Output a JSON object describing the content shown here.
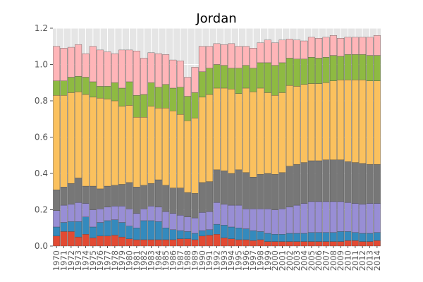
{
  "chart_data": {
    "type": "bar",
    "stacked": true,
    "title": "Jordan",
    "xlabel": "",
    "ylabel": "",
    "ylim": [
      0,
      1.2
    ],
    "yticks": [
      0.0,
      0.2,
      0.4,
      0.6,
      0.8,
      1.0,
      1.2
    ],
    "ytick_labels": [
      "0.0",
      "0.2",
      "0.4",
      "0.6",
      "0.8",
      "1.0",
      "1.2"
    ],
    "grid": true,
    "legend": "none",
    "categories": [
      "1970",
      "1971",
      "1972",
      "1973",
      "1974",
      "1975",
      "1976",
      "1977",
      "1978",
      "1979",
      "1980",
      "1981",
      "1982",
      "1983",
      "1984",
      "1985",
      "1986",
      "1987",
      "1988",
      "1989",
      "1990",
      "1991",
      "1992",
      "1993",
      "1994",
      "1995",
      "1996",
      "1997",
      "1998",
      "1999",
      "2000",
      "2001",
      "2002",
      "2003",
      "2004",
      "2005",
      "2006",
      "2007",
      "2008",
      "2009",
      "2010",
      "2011",
      "2012",
      "2013",
      "2014"
    ],
    "series": [
      {
        "color": "#E24A33",
        "values": [
          0.055,
          0.08,
          0.08,
          0.05,
          0.065,
          0.045,
          0.055,
          0.055,
          0.06,
          0.05,
          0.04,
          0.035,
          0.035,
          0.035,
          0.035,
          0.035,
          0.035,
          0.04,
          0.04,
          0.035,
          0.055,
          0.06,
          0.065,
          0.045,
          0.04,
          0.035,
          0.035,
          0.03,
          0.035,
          0.025,
          0.025,
          0.025,
          0.025,
          0.025,
          0.025,
          0.025,
          0.025,
          0.025,
          0.025,
          0.025,
          0.03,
          0.03,
          0.025,
          0.025,
          0.03
        ]
      },
      {
        "color": "#348ABD",
        "values": [
          0.05,
          0.05,
          0.055,
          0.085,
          0.095,
          0.06,
          0.075,
          0.085,
          0.085,
          0.08,
          0.07,
          0.065,
          0.105,
          0.105,
          0.1,
          0.065,
          0.055,
          0.045,
          0.04,
          0.035,
          0.03,
          0.03,
          0.055,
          0.07,
          0.065,
          0.065,
          0.06,
          0.055,
          0.045,
          0.045,
          0.04,
          0.04,
          0.045,
          0.045,
          0.045,
          0.05,
          0.05,
          0.05,
          0.05,
          0.055,
          0.05,
          0.045,
          0.045,
          0.045,
          0.045
        ]
      },
      {
        "color": "#988ED5",
        "values": [
          0.09,
          0.095,
          0.095,
          0.105,
          0.075,
          0.095,
          0.075,
          0.075,
          0.075,
          0.09,
          0.095,
          0.08,
          0.065,
          0.08,
          0.08,
          0.09,
          0.09,
          0.085,
          0.08,
          0.085,
          0.1,
          0.1,
          0.12,
          0.115,
          0.12,
          0.125,
          0.11,
          0.12,
          0.125,
          0.135,
          0.135,
          0.14,
          0.145,
          0.155,
          0.165,
          0.17,
          0.17,
          0.17,
          0.17,
          0.165,
          0.16,
          0.16,
          0.16,
          0.165,
          0.16
        ]
      },
      {
        "color": "#777777",
        "values": [
          0.115,
          0.1,
          0.115,
          0.135,
          0.095,
          0.13,
          0.11,
          0.115,
          0.115,
          0.12,
          0.145,
          0.145,
          0.13,
          0.125,
          0.15,
          0.145,
          0.14,
          0.15,
          0.135,
          0.135,
          0.165,
          0.165,
          0.18,
          0.185,
          0.175,
          0.195,
          0.2,
          0.175,
          0.19,
          0.195,
          0.195,
          0.2,
          0.225,
          0.225,
          0.225,
          0.225,
          0.225,
          0.23,
          0.23,
          0.23,
          0.225,
          0.225,
          0.225,
          0.215,
          0.215
        ]
      },
      {
        "color": "#FBC15E",
        "values": [
          0.52,
          0.505,
          0.5,
          0.475,
          0.505,
          0.49,
          0.5,
          0.48,
          0.465,
          0.43,
          0.425,
          0.385,
          0.375,
          0.425,
          0.395,
          0.425,
          0.425,
          0.405,
          0.395,
          0.415,
          0.47,
          0.48,
          0.45,
          0.455,
          0.465,
          0.42,
          0.465,
          0.47,
          0.475,
          0.445,
          0.435,
          0.44,
          0.445,
          0.43,
          0.43,
          0.425,
          0.425,
          0.425,
          0.435,
          0.44,
          0.45,
          0.455,
          0.46,
          0.46,
          0.46
        ]
      },
      {
        "color": "#8EBA42",
        "values": [
          0.08,
          0.08,
          0.085,
          0.085,
          0.095,
          0.085,
          0.065,
          0.07,
          0.1,
          0.1,
          0.13,
          0.12,
          0.125,
          0.13,
          0.115,
          0.13,
          0.125,
          0.15,
          0.135,
          0.14,
          0.14,
          0.145,
          0.13,
          0.125,
          0.115,
          0.14,
          0.125,
          0.13,
          0.14,
          0.165,
          0.165,
          0.165,
          0.15,
          0.15,
          0.14,
          0.145,
          0.14,
          0.14,
          0.14,
          0.13,
          0.14,
          0.14,
          0.14,
          0.14,
          0.14
        ]
      },
      {
        "color": "#FFB5B8",
        "values": [
          0.19,
          0.18,
          0.165,
          0.175,
          0.13,
          0.195,
          0.2,
          0.19,
          0.16,
          0.21,
          0.175,
          0.245,
          0.2,
          0.165,
          0.185,
          0.165,
          0.155,
          0.145,
          0.105,
          0.14,
          0.14,
          0.12,
          0.115,
          0.115,
          0.135,
          0.12,
          0.105,
          0.11,
          0.11,
          0.125,
          0.125,
          0.125,
          0.105,
          0.105,
          0.1,
          0.11,
          0.11,
          0.11,
          0.11,
          0.1,
          0.095,
          0.095,
          0.095,
          0.1,
          0.11
        ]
      }
    ]
  }
}
